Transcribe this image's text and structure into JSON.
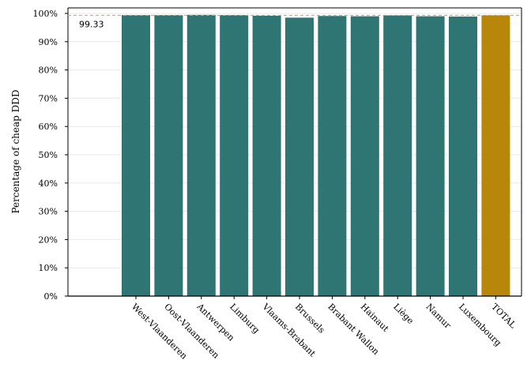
{
  "chart_data": {
    "type": "bar",
    "title": "",
    "xlabel": "",
    "ylabel": "Percentage of cheap DDD",
    "ylim": [
      0,
      100
    ],
    "yticks": [
      "0%",
      "10%",
      "20%",
      "30%",
      "40%",
      "50%",
      "60%",
      "70%",
      "80%",
      "90%",
      "100%"
    ],
    "categories": [
      "West-Vlaanderen",
      "Oost-Vlaanderen",
      "Antwerpen",
      "Limburg",
      "Vlaams-Brabant",
      "Brussels",
      "Brabant Wallon",
      "Hainaut",
      "Liège",
      "Namur",
      "Luxembourg",
      "TOTAL"
    ],
    "values": [
      99.4,
      99.4,
      99.5,
      99.4,
      99.2,
      98.5,
      99.1,
      99.0,
      99.3,
      99.0,
      98.9,
      99.33
    ],
    "reference_line": {
      "value": 99.33,
      "label": "99.33",
      "style": "dashed",
      "color": "#d9a441"
    },
    "grid": true,
    "legend": "none",
    "colors": {
      "bar": "#2e7573",
      "total_bar": "#b8860b",
      "grid": "#e8e8e8"
    }
  }
}
